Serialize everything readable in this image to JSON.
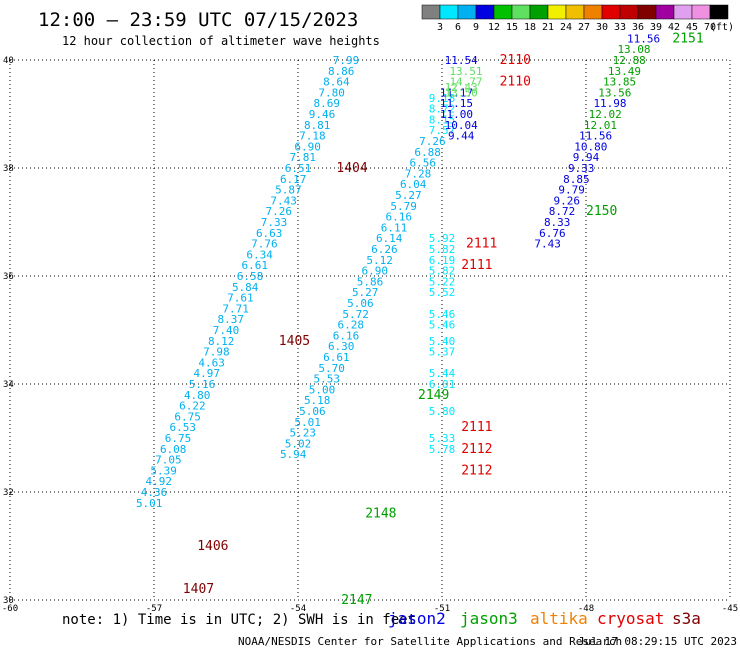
{
  "header": {
    "title": "12:00 – 23:59 UTC 07/15/2023",
    "subtitle": "12 hour collection of altimeter wave heights"
  },
  "colorbar": {
    "labels": [
      "3",
      "6",
      "9",
      "12",
      "15",
      "18",
      "21",
      "24",
      "27",
      "30",
      "33",
      "36",
      "39",
      "42",
      "45",
      "70"
    ],
    "unit": "(ft)",
    "colors": [
      "#808080",
      "#00e8ff",
      "#00b0f0",
      "#0000e0",
      "#00c000",
      "#60e060",
      "#00a000",
      "#f0f000",
      "#f0c000",
      "#f08000",
      "#e00000",
      "#c00000",
      "#800000",
      "#a000a0",
      "#e0a0f0",
      "#f090e0",
      "#000000"
    ]
  },
  "note": "note:  1) Time is in UTC; 2) SWH is in feet",
  "satellites": [
    {
      "name": "jason2",
      "color": "#0000e0"
    },
    {
      "name": "jason3",
      "color": "#00a000"
    },
    {
      "name": "altika",
      "color": "#f08000"
    },
    {
      "name": "cryosat",
      "color": "#e00000"
    },
    {
      "name": "s3a",
      "color": "#800000"
    }
  ],
  "footer": {
    "source": "NOAA/NESDIS Center for Satellite Applications and Research",
    "generated": "Jul 17 08:29:15 UTC 2023"
  },
  "chart_data": {
    "type": "scatter",
    "title": "12:00 – 23:59 UTC 07/15/2023",
    "subtitle": "12 hour collection of altimeter wave heights",
    "xlabel": "",
    "ylabel": "",
    "xlim": [
      -60,
      -45
    ],
    "ylim": [
      30,
      40
    ],
    "x_ticks": [
      -60,
      -57,
      -54,
      -51,
      -48,
      -45
    ],
    "y_ticks": [
      30,
      32,
      34,
      36,
      38,
      40
    ],
    "grid": true,
    "series": [
      {
        "name": "cryosat",
        "color": "#00b0f0",
        "points": [
          [
            -53.0,
            40.0,
            "7.99"
          ],
          [
            -53.1,
            39.8,
            "8.86"
          ],
          [
            -53.2,
            39.6,
            "8.64"
          ],
          [
            -53.3,
            39.4,
            "7.80"
          ],
          [
            -53.4,
            39.2,
            "8.69"
          ],
          [
            -53.5,
            39.0,
            "9.46"
          ],
          [
            -53.6,
            38.8,
            "8.81"
          ],
          [
            -53.7,
            38.6,
            "7.18"
          ],
          [
            -53.8,
            38.4,
            "6.90"
          ],
          [
            -53.9,
            38.2,
            "7.81"
          ],
          [
            -54.0,
            38.0,
            "6.51"
          ],
          [
            -54.1,
            37.8,
            "6.17"
          ],
          [
            -54.2,
            37.6,
            "5.87"
          ],
          [
            -54.3,
            37.4,
            "7.43"
          ],
          [
            -54.4,
            37.2,
            "7.26"
          ],
          [
            -54.5,
            37.0,
            "7.33"
          ],
          [
            -54.6,
            36.8,
            "6.63"
          ],
          [
            -54.7,
            36.6,
            "7.76"
          ],
          [
            -54.8,
            36.4,
            "6.34"
          ],
          [
            -54.9,
            36.2,
            "6.61"
          ],
          [
            -55.0,
            36.0,
            "6.58"
          ],
          [
            -55.1,
            35.8,
            "5.84"
          ],
          [
            -55.2,
            35.6,
            "7.61"
          ],
          [
            -55.3,
            35.4,
            "7.71"
          ],
          [
            -55.4,
            35.2,
            "8.37"
          ],
          [
            -55.5,
            35.0,
            "7.40"
          ],
          [
            -55.6,
            34.8,
            "8.12"
          ],
          [
            -55.7,
            34.6,
            "7.98"
          ],
          [
            -55.8,
            34.4,
            "4.63"
          ],
          [
            -55.9,
            34.2,
            "4.97"
          ],
          [
            -56.0,
            34.0,
            "5.16"
          ],
          [
            -56.1,
            33.8,
            "4.80"
          ],
          [
            -56.2,
            33.6,
            "6.22"
          ],
          [
            -56.3,
            33.4,
            "6.75"
          ],
          [
            -56.4,
            33.2,
            "6.53"
          ],
          [
            -56.5,
            33.0,
            "6.75"
          ],
          [
            -56.6,
            32.8,
            "6.08"
          ],
          [
            -56.7,
            32.6,
            "7.05"
          ],
          [
            -56.8,
            32.4,
            "5.39"
          ],
          [
            -56.9,
            32.2,
            "4.92"
          ],
          [
            -57.0,
            32.0,
            "4.36"
          ],
          [
            -57.1,
            31.8,
            "5.01"
          ]
        ]
      },
      {
        "name": "jason2",
        "color": "#00b0f0",
        "points": [
          [
            -51.2,
            38.5,
            "7.26"
          ],
          [
            -51.3,
            38.3,
            "6.88"
          ],
          [
            -51.4,
            38.1,
            "6.56"
          ],
          [
            -51.5,
            37.9,
            "7.28"
          ],
          [
            -51.6,
            37.7,
            "6.04"
          ],
          [
            -51.7,
            37.5,
            "5.27"
          ],
          [
            -51.8,
            37.3,
            "5.79"
          ],
          [
            -51.9,
            37.1,
            "6.16"
          ],
          [
            -52.0,
            36.9,
            "6.11"
          ],
          [
            -52.1,
            36.7,
            "6.14"
          ],
          [
            -52.2,
            36.5,
            "6.26"
          ],
          [
            -52.3,
            36.3,
            "5.12"
          ],
          [
            -52.4,
            36.1,
            "6.90"
          ],
          [
            -52.5,
            35.9,
            "5.86"
          ],
          [
            -52.6,
            35.7,
            "5.27"
          ],
          [
            -52.7,
            35.5,
            "5.06"
          ],
          [
            -52.8,
            35.3,
            "5.72"
          ],
          [
            -52.9,
            35.1,
            "6.28"
          ],
          [
            -53.0,
            34.9,
            "6.16"
          ],
          [
            -53.1,
            34.7,
            "6.30"
          ],
          [
            -53.2,
            34.5,
            "6.61"
          ],
          [
            -53.3,
            34.3,
            "5.70"
          ],
          [
            -53.4,
            34.1,
            "5.53"
          ],
          [
            -53.5,
            33.9,
            "5.00"
          ],
          [
            -53.6,
            33.7,
            "5.18"
          ],
          [
            -53.7,
            33.5,
            "5.06"
          ],
          [
            -53.8,
            33.3,
            "5.01"
          ],
          [
            -53.9,
            33.1,
            "5.23"
          ],
          [
            -54.0,
            32.9,
            "5.02"
          ],
          [
            -54.1,
            32.7,
            "5.94"
          ]
        ]
      },
      {
        "name": "jason3",
        "color": "#00e8ff",
        "points": [
          [
            -51.0,
            39.3,
            "9.18"
          ],
          [
            -51.0,
            39.1,
            "8.72"
          ],
          [
            -51.0,
            38.9,
            "8.15"
          ],
          [
            -51.0,
            38.7,
            "7.57"
          ],
          [
            -51.0,
            36.7,
            "5.92"
          ],
          [
            -51.0,
            36.5,
            "5.82"
          ],
          [
            -51.0,
            36.3,
            "6.19"
          ],
          [
            -51.0,
            36.1,
            "5.82"
          ],
          [
            -51.0,
            35.9,
            "5.22"
          ],
          [
            -51.0,
            35.7,
            "5.52"
          ],
          [
            -51.0,
            35.3,
            "5.46"
          ],
          [
            -51.0,
            35.1,
            "5.46"
          ],
          [
            -51.0,
            34.8,
            "5.40"
          ],
          [
            -51.0,
            34.6,
            "5.37"
          ],
          [
            -51.0,
            34.2,
            "5.44"
          ],
          [
            -51.0,
            34.0,
            "6.01"
          ],
          [
            -51.0,
            33.5,
            "5.80"
          ],
          [
            -51.0,
            33.0,
            "5.33"
          ],
          [
            -51.0,
            32.8,
            "5.78"
          ]
        ]
      },
      {
        "name": "jason3-high",
        "color": "#0000e0",
        "points": [
          [
            -50.6,
            40.0,
            "11.54"
          ],
          [
            -50.7,
            39.4,
            "11.17"
          ],
          [
            -50.7,
            39.2,
            "11.15"
          ],
          [
            -50.7,
            39.0,
            "11.00"
          ],
          [
            -50.6,
            38.8,
            "10.04"
          ],
          [
            -50.6,
            38.6,
            "9.44"
          ]
        ]
      },
      {
        "name": "jason3-green",
        "color": "#60e060",
        "points": [
          [
            -50.5,
            39.8,
            "13.51"
          ],
          [
            -50.5,
            39.6,
            "14.77"
          ],
          [
            -50.6,
            39.5,
            "12.43"
          ],
          [
            -50.6,
            39.4,
            "13.50"
          ]
        ]
      },
      {
        "name": "altika",
        "color": "#00a000",
        "points": [
          [
            -47.0,
            40.2,
            "13.08"
          ],
          [
            -47.1,
            40.0,
            "12.88"
          ],
          [
            -47.2,
            39.8,
            "13.49"
          ],
          [
            -47.3,
            39.6,
            "13.85"
          ],
          [
            -47.4,
            39.4,
            "13.56"
          ],
          [
            -47.6,
            39.0,
            "12.02"
          ],
          [
            -47.7,
            38.8,
            "12.01"
          ]
        ]
      },
      {
        "name": "altika-blue",
        "color": "#0000e0",
        "points": [
          [
            -46.8,
            40.4,
            "11.56"
          ],
          [
            -47.5,
            39.2,
            "11.98"
          ],
          [
            -47.8,
            38.6,
            "11.56"
          ],
          [
            -47.9,
            38.4,
            "10.80"
          ],
          [
            -48.0,
            38.2,
            "9.94"
          ],
          [
            -48.1,
            38.0,
            "9.33"
          ],
          [
            -48.2,
            37.8,
            "8.85"
          ],
          [
            -48.3,
            37.6,
            "9.79"
          ],
          [
            -48.4,
            37.4,
            "9.26"
          ],
          [
            -48.5,
            37.2,
            "8.72"
          ],
          [
            -48.6,
            37.0,
            "8.33"
          ],
          [
            -48.7,
            36.8,
            "6.76"
          ],
          [
            -48.8,
            36.6,
            "7.43"
          ]
        ]
      }
    ],
    "time_labels": [
      {
        "text": "2151",
        "x": -46.2,
        "y": 40.4,
        "color": "#00a000"
      },
      {
        "text": "2110",
        "x": -49.8,
        "y": 40.0,
        "color": "#e00000"
      },
      {
        "text": "2110",
        "x": -49.8,
        "y": 39.6,
        "color": "#e00000"
      },
      {
        "text": "1404",
        "x": -53.2,
        "y": 38.0,
        "color": "#800000"
      },
      {
        "text": "2150",
        "x": -48.0,
        "y": 37.2,
        "color": "#00a000"
      },
      {
        "text": "2111",
        "x": -50.5,
        "y": 36.6,
        "color": "#e00000"
      },
      {
        "text": "2111",
        "x": -50.6,
        "y": 36.2,
        "color": "#e00000"
      },
      {
        "text": "1405",
        "x": -54.4,
        "y": 34.8,
        "color": "#800000"
      },
      {
        "text": "2149",
        "x": -51.5,
        "y": 33.8,
        "color": "#00a000"
      },
      {
        "text": "2111",
        "x": -50.6,
        "y": 33.2,
        "color": "#e00000"
      },
      {
        "text": "2112",
        "x": -50.6,
        "y": 32.8,
        "color": "#e00000"
      },
      {
        "text": "2112",
        "x": -50.6,
        "y": 32.4,
        "color": "#e00000"
      },
      {
        "text": "2148",
        "x": -52.6,
        "y": 31.6,
        "color": "#00a000"
      },
      {
        "text": "1406",
        "x": -56.1,
        "y": 31.0,
        "color": "#800000"
      },
      {
        "text": "1407",
        "x": -56.4,
        "y": 30.2,
        "color": "#800000"
      },
      {
        "text": "2147",
        "x": -53.1,
        "y": 30.0,
        "color": "#00a000"
      }
    ]
  }
}
